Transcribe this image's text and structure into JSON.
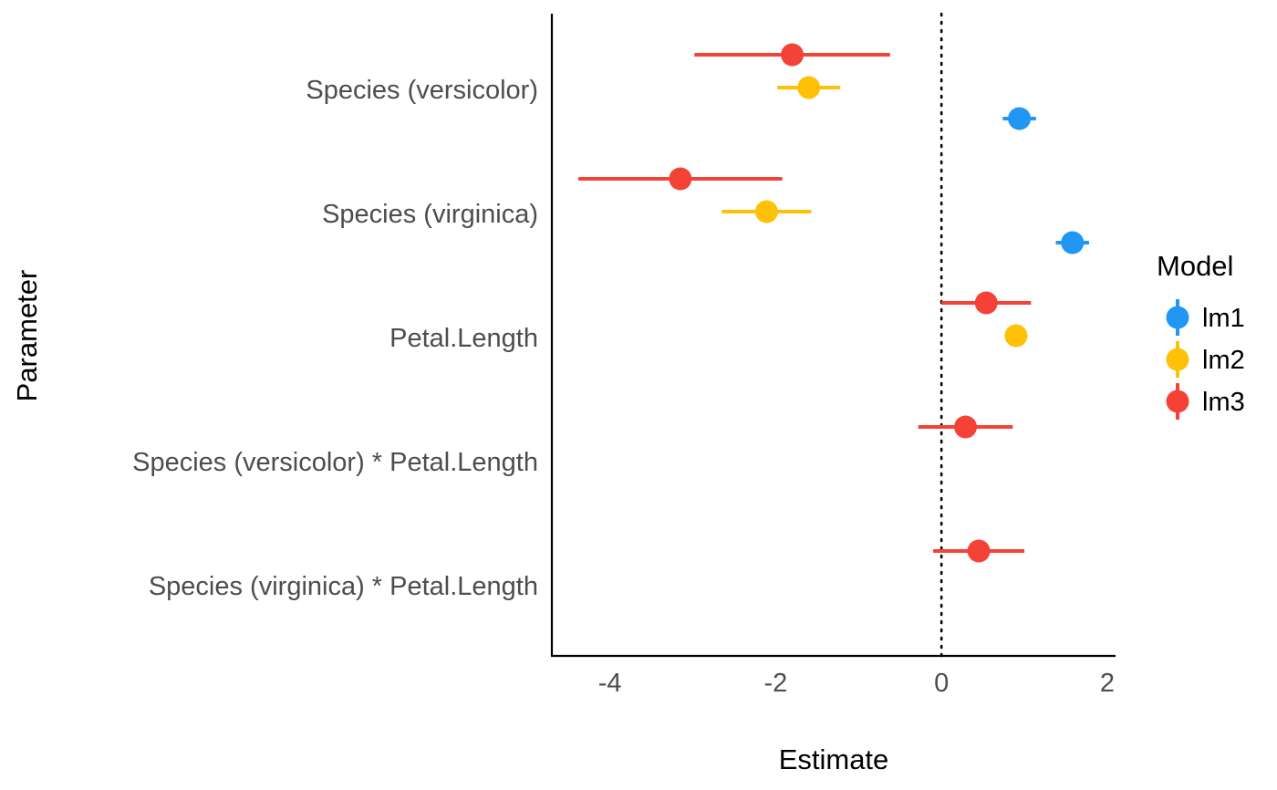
{
  "chart_data": {
    "type": "scatter",
    "subtype": "coefficient-plot-with-error-bars",
    "xlabel": "Estimate",
    "ylabel": "Parameter",
    "xlim": [
      -4.7,
      2.1
    ],
    "x_ticks": [
      -4,
      -2,
      0,
      2
    ],
    "x_tick_labels": [
      "-4",
      "-2",
      "0",
      "2"
    ],
    "reference_line": {
      "x": 0,
      "style": "dotted"
    },
    "grid": false,
    "categories": [
      "Species (versicolor)",
      "Species (virginica)",
      "Petal.Length",
      "Species (versicolor) * Petal.Length",
      "Species (virginica) * Petal.Length"
    ],
    "legend": {
      "title": "Model",
      "position": "right"
    },
    "series": [
      {
        "name": "lm1",
        "color": "#2196f3",
        "points": [
          {
            "category": "Species (versicolor)",
            "estimate": 0.94,
            "low": 0.74,
            "high": 1.14
          },
          {
            "category": "Species (virginica)",
            "estimate": 1.58,
            "low": 1.38,
            "high": 1.78
          }
        ]
      },
      {
        "name": "lm2",
        "color": "#ffc107",
        "points": [
          {
            "category": "Species (versicolor)",
            "estimate": -1.6,
            "low": -1.98,
            "high": -1.22
          },
          {
            "category": "Species (virginica)",
            "estimate": -2.11,
            "low": -2.65,
            "high": -1.57
          },
          {
            "category": "Petal.Length",
            "estimate": 0.9,
            "low": 0.8,
            "high": 1.0
          }
        ]
      },
      {
        "name": "lm3",
        "color": "#f44336",
        "points": [
          {
            "category": "Species (versicolor)",
            "estimate": -1.8,
            "low": -2.98,
            "high": -0.62
          },
          {
            "category": "Species (virginica)",
            "estimate": -3.15,
            "low": -4.38,
            "high": -1.92
          },
          {
            "category": "Petal.Length",
            "estimate": 0.54,
            "low": 0.0,
            "high": 1.08
          },
          {
            "category": "Species (versicolor) * Petal.Length",
            "estimate": 0.29,
            "low": -0.28,
            "high": 0.86
          },
          {
            "category": "Species (virginica) * Petal.Length",
            "estimate": 0.45,
            "low": -0.1,
            "high": 1.0
          }
        ]
      }
    ]
  }
}
